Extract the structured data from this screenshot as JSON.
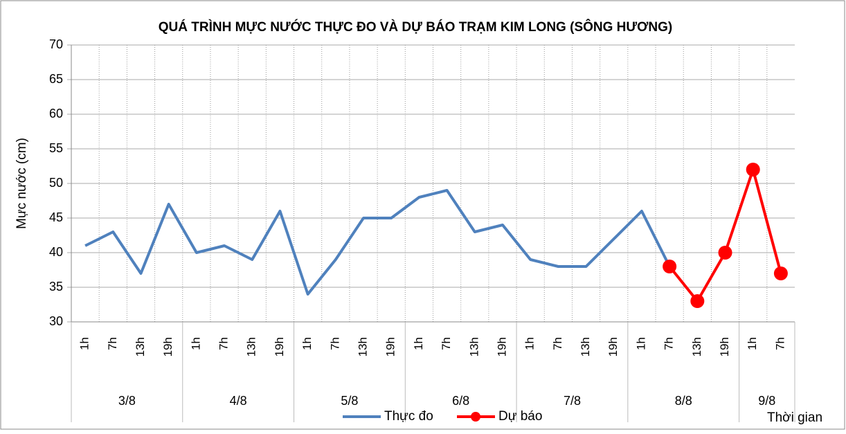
{
  "chart_data": {
    "type": "line",
    "title": "QUÁ TRÌNH MỰC NƯỚC THỰC ĐO VÀ DỰ BÁO TRẠM KIM LONG (SÔNG HƯƠNG)",
    "y_label": "Mực nước (cm)",
    "x_label": "Thời gian",
    "categories": [
      "1h",
      "7h",
      "13h",
      "19h",
      "1h",
      "7h",
      "13h",
      "19h",
      "1h",
      "7h",
      "13h",
      "19h",
      "1h",
      "7h",
      "13h",
      "19h",
      "1h",
      "7h",
      "13h",
      "19h",
      "1h",
      "7h",
      "13h",
      "19h",
      "1h",
      "7h"
    ],
    "groups": [
      {
        "name": "3/8",
        "count": 4
      },
      {
        "name": "4/8",
        "count": 4
      },
      {
        "name": "5/8",
        "count": 4
      },
      {
        "name": "6/8",
        "count": 4
      },
      {
        "name": "7/8",
        "count": 4
      },
      {
        "name": "8/8",
        "count": 4
      },
      {
        "name": "9/8",
        "count": 2
      }
    ],
    "series": [
      {
        "name": "Thực đo",
        "color": "#4f81bd",
        "marker": false,
        "values": [
          41,
          43,
          37,
          47,
          40,
          41,
          39,
          46,
          34,
          39,
          45,
          45,
          48,
          49,
          43,
          44,
          39,
          38,
          38,
          42,
          46,
          38,
          null,
          null,
          null,
          null
        ]
      },
      {
        "name": "Dự báo",
        "color": "#ff0000",
        "marker": true,
        "values": [
          null,
          null,
          null,
          null,
          null,
          null,
          null,
          null,
          null,
          null,
          null,
          null,
          null,
          null,
          null,
          null,
          null,
          null,
          null,
          null,
          null,
          38,
          33,
          40,
          52,
          37
        ]
      }
    ],
    "ylim": [
      30,
      70
    ],
    "yticks": [
      30,
      35,
      40,
      45,
      50,
      55,
      60,
      65,
      70
    ],
    "grid": true,
    "legend": "bottom"
  }
}
